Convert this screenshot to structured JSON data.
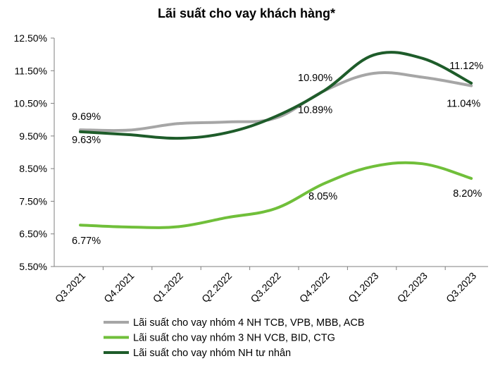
{
  "chart_data": {
    "type": "line",
    "title": "Lãi suất cho vay khách hàng*",
    "xlabel": "",
    "ylabel": "",
    "categories": [
      "Q3.2021",
      "Q4.2021",
      "Q1.2022",
      "Q2.2022",
      "Q3.2022",
      "Q4.2022",
      "Q1.2023",
      "Q2.2023",
      "Q3.2023"
    ],
    "y_ticks": [
      "5.50%",
      "6.50%",
      "7.50%",
      "8.50%",
      "9.50%",
      "10.50%",
      "11.50%",
      "12.50%"
    ],
    "ylim": [
      5.5,
      12.5
    ],
    "grid": false,
    "legend_position": "bottom",
    "series": [
      {
        "name": "Lãi suất cho vay nhóm 4 NH TCB, VPB, MBB, ACB",
        "color": "#a6a6a6",
        "values": [
          9.69,
          9.68,
          9.88,
          9.93,
          10.05,
          10.89,
          11.42,
          11.3,
          11.04
        ],
        "labels": [
          {
            "index": 0,
            "text": "9.69%"
          },
          {
            "index": 5,
            "text": "10.89%"
          },
          {
            "index": 8,
            "text": "11.04%"
          }
        ]
      },
      {
        "name": "Lãi suất cho vay nhóm 3 NH VCB, BID, CTG",
        "color": "#70bf3a",
        "values": [
          6.77,
          6.71,
          6.72,
          7.0,
          7.28,
          8.05,
          8.57,
          8.65,
          8.2
        ],
        "labels": [
          {
            "index": 0,
            "text": "6.77%"
          },
          {
            "index": 5,
            "text": "8.05%"
          },
          {
            "index": 8,
            "text": "8.20%"
          }
        ]
      },
      {
        "name": "Lãi suất cho vay nhóm NH tư nhân",
        "color": "#1e5c2a",
        "values": [
          9.63,
          9.54,
          9.43,
          9.6,
          10.1,
          10.9,
          11.98,
          11.88,
          11.12
        ],
        "labels": [
          {
            "index": 0,
            "text": "9.63%"
          },
          {
            "index": 5,
            "text": "10.90%"
          },
          {
            "index": 8,
            "text": "11.12%"
          }
        ]
      }
    ]
  }
}
